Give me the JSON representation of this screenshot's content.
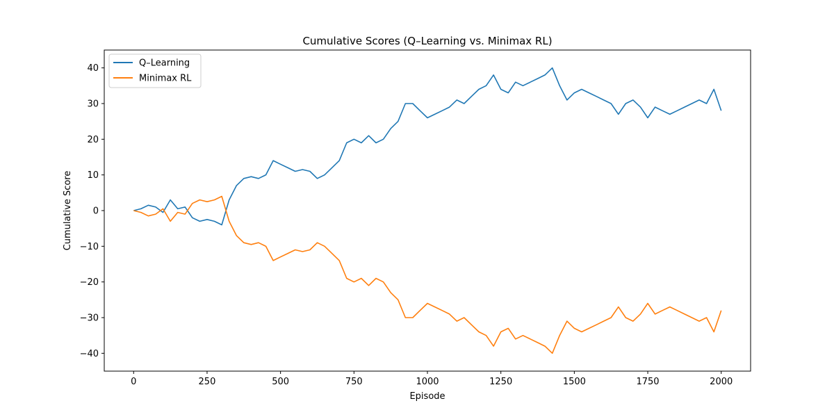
{
  "chart_data": {
    "type": "line",
    "title": "Cumulative Scores (Q–Learning vs. Minimax RL)",
    "xlabel": "Episode",
    "ylabel": "Cumulative Score",
    "xlim": [
      -100,
      2100
    ],
    "ylim": [
      -45,
      45
    ],
    "xticks": [
      0,
      250,
      500,
      750,
      1000,
      1250,
      1500,
      1750,
      2000
    ],
    "yticks": [
      -40,
      -30,
      -20,
      -10,
      0,
      10,
      20,
      30,
      40
    ],
    "grid": false,
    "legend": "top-left",
    "x": [
      0,
      25,
      50,
      75,
      100,
      125,
      150,
      175,
      200,
      225,
      250,
      275,
      300,
      325,
      350,
      375,
      400,
      425,
      450,
      475,
      500,
      525,
      550,
      575,
      600,
      625,
      650,
      675,
      700,
      725,
      750,
      775,
      800,
      825,
      850,
      875,
      900,
      925,
      950,
      975,
      1000,
      1025,
      1050,
      1075,
      1100,
      1125,
      1150,
      1175,
      1200,
      1225,
      1250,
      1275,
      1300,
      1325,
      1350,
      1375,
      1400,
      1425,
      1450,
      1475,
      1500,
      1525,
      1550,
      1575,
      1600,
      1625,
      1650,
      1675,
      1700,
      1725,
      1750,
      1775,
      1800,
      1825,
      1850,
      1875,
      1900,
      1925,
      1950,
      1975,
      2000
    ],
    "series": [
      {
        "name": "Q–Learning",
        "color": "#1f77b4",
        "values": [
          0,
          0.5,
          1.5,
          1,
          -0.5,
          3,
          0.5,
          1,
          -2,
          -3,
          -2.5,
          -3,
          -4,
          3,
          7,
          9,
          9.5,
          9,
          10,
          14,
          13,
          12,
          11,
          11.5,
          11,
          9,
          10,
          12,
          14,
          19,
          20,
          19,
          21,
          19,
          20,
          23,
          25,
          30,
          30,
          28,
          26,
          27,
          28,
          29,
          31,
          30,
          32,
          34,
          35,
          38,
          34,
          33,
          36,
          35,
          36,
          37,
          38,
          40,
          35,
          31,
          33,
          34,
          33,
          32,
          31,
          30,
          27,
          30,
          31,
          29,
          26,
          29,
          28,
          27,
          28,
          29,
          30,
          31,
          30,
          34,
          28
        ]
      },
      {
        "name": "Minimax RL",
        "color": "#ff7f0e",
        "values": [
          0,
          -0.5,
          -1.5,
          -1,
          0.5,
          -3,
          -0.5,
          -1,
          2,
          3,
          2.5,
          3,
          4,
          -3,
          -7,
          -9,
          -9.5,
          -9,
          -10,
          -14,
          -13,
          -12,
          -11,
          -11.5,
          -11,
          -9,
          -10,
          -12,
          -14,
          -19,
          -20,
          -19,
          -21,
          -19,
          -20,
          -23,
          -25,
          -30,
          -30,
          -28,
          -26,
          -27,
          -28,
          -29,
          -31,
          -30,
          -32,
          -34,
          -35,
          -38,
          -34,
          -33,
          -36,
          -35,
          -36,
          -37,
          -38,
          -40,
          -35,
          -31,
          -33,
          -34,
          -33,
          -32,
          -31,
          -30,
          -27,
          -30,
          -31,
          -29,
          -26,
          -29,
          -28,
          -27,
          -28,
          -29,
          -30,
          -31,
          -30,
          -34,
          -28
        ]
      }
    ]
  }
}
